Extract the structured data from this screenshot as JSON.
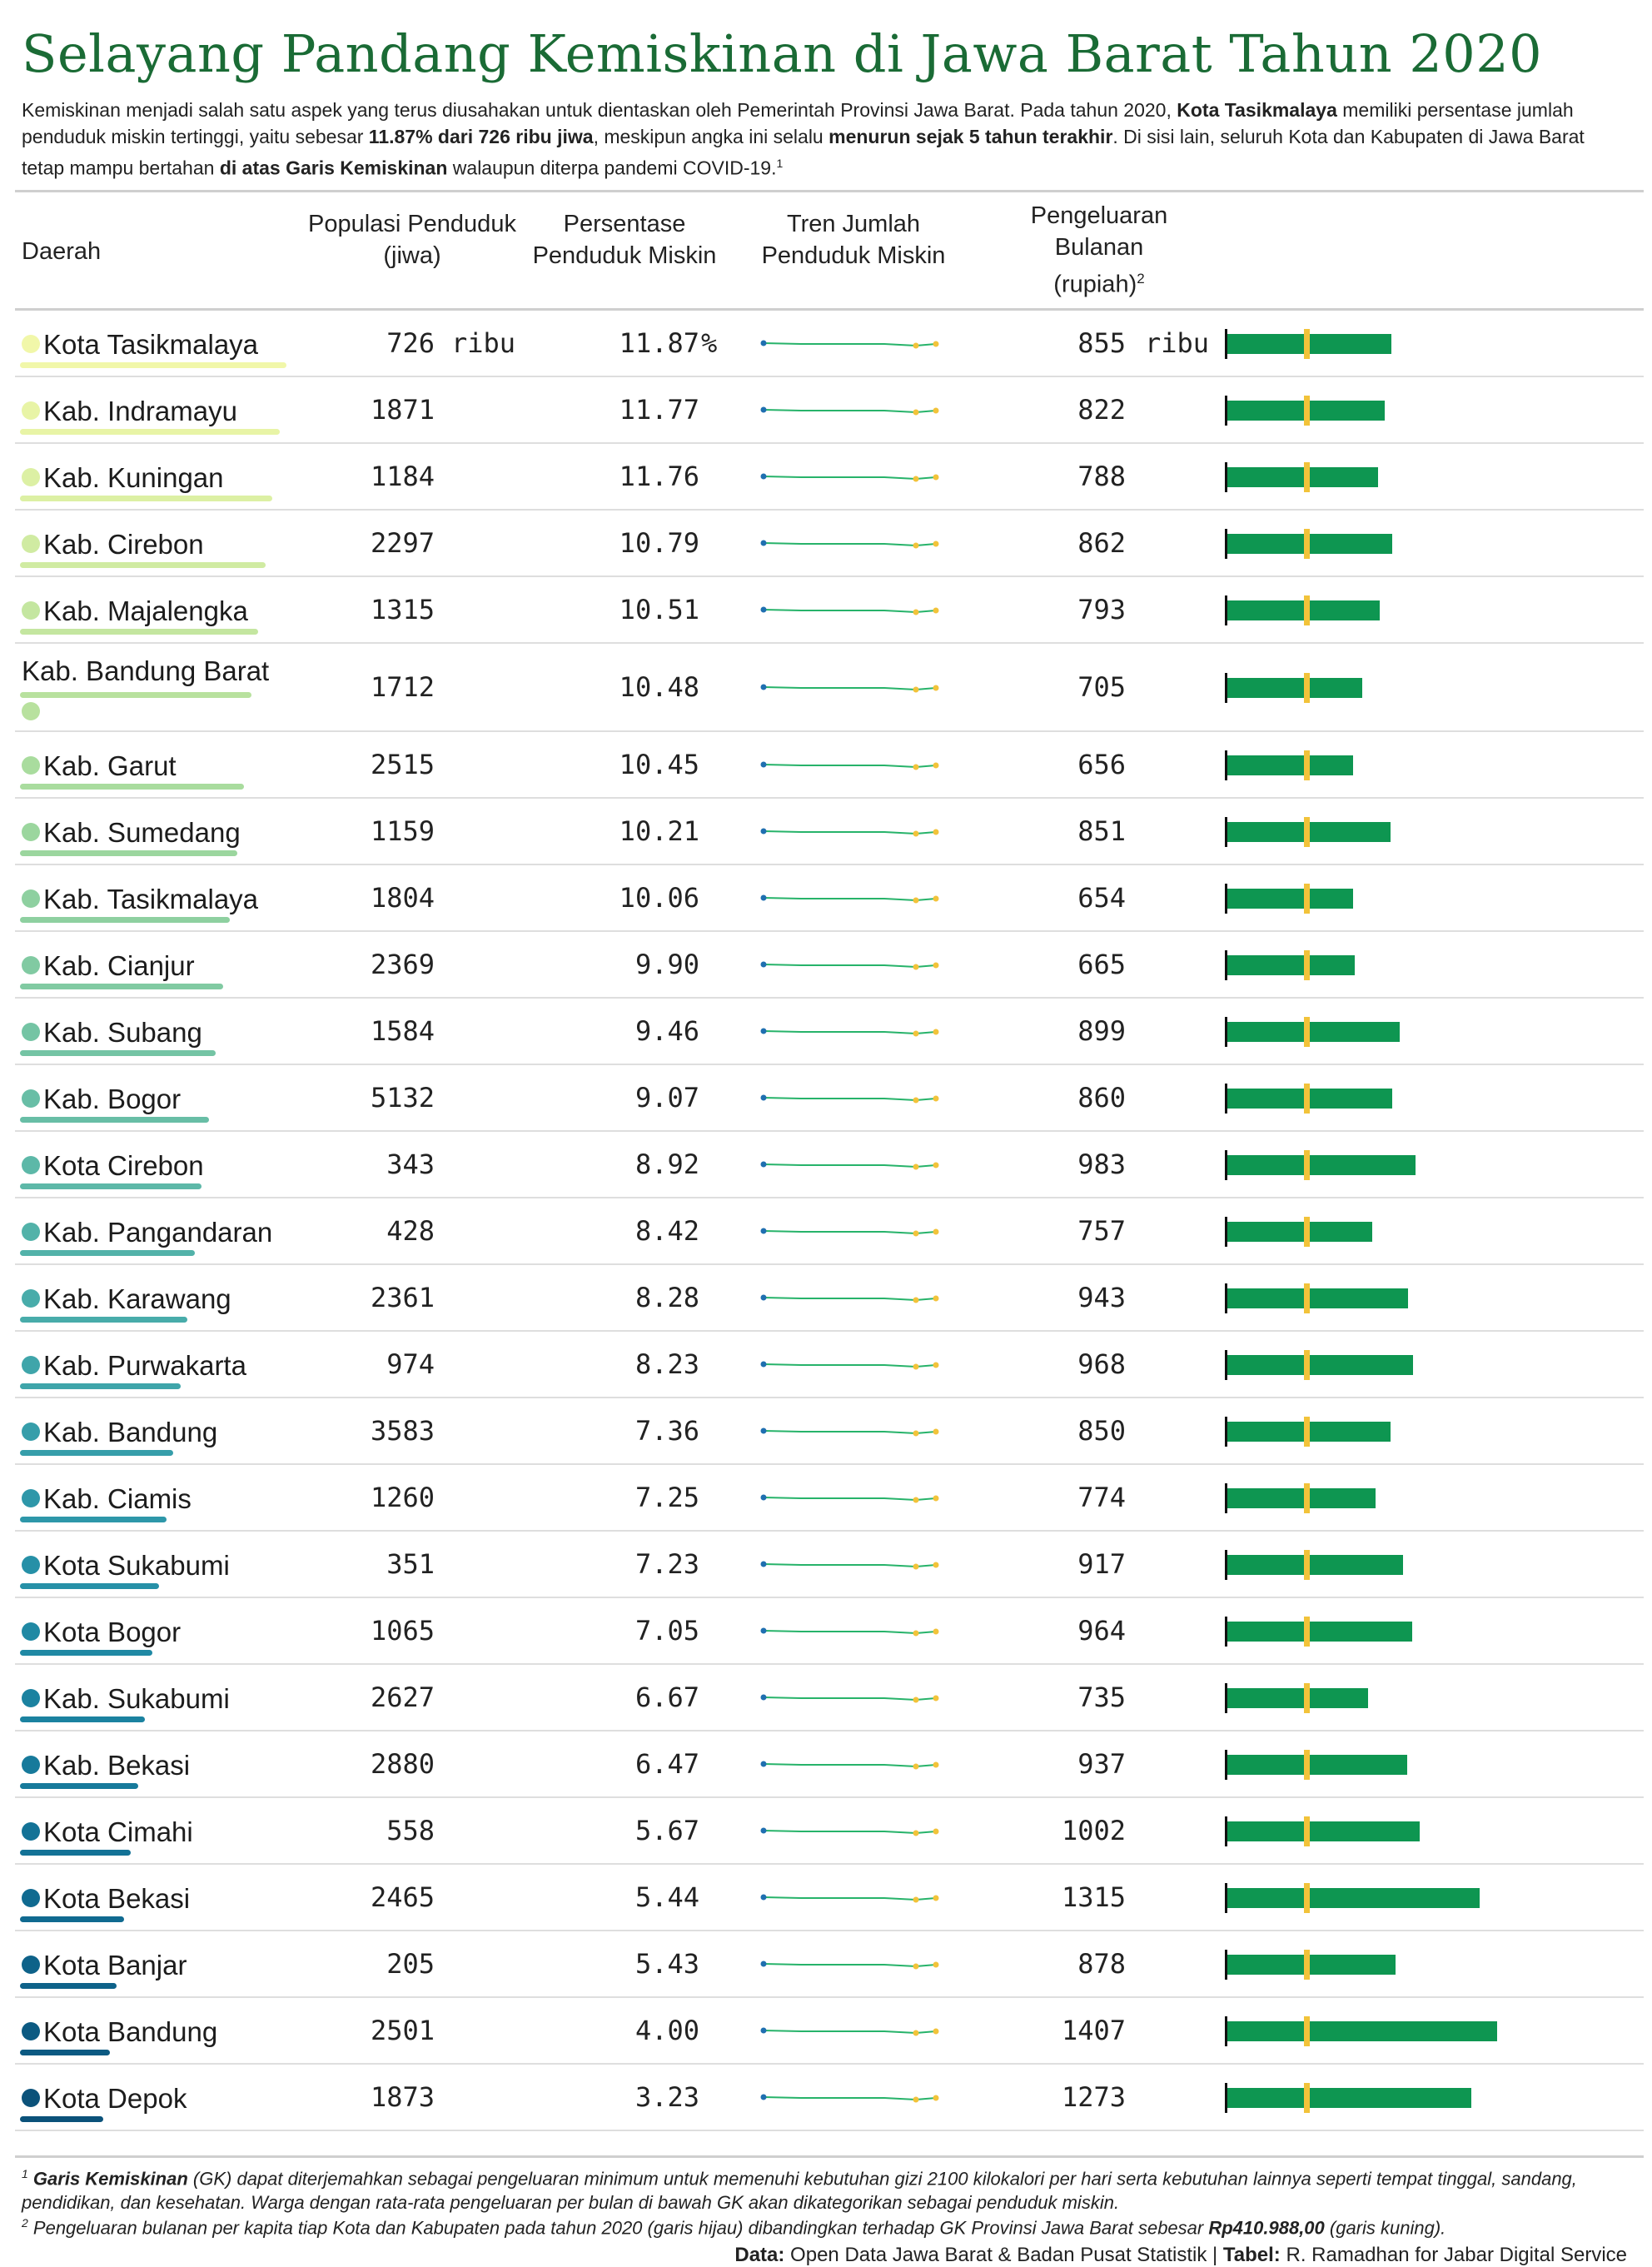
{
  "title": "Selayang Pandang Kemiskinan di Jawa Barat Tahun 2020",
  "intro": [
    {
      "t": "Kemiskinan menjadi salah satu aspek yang terus diusahakan untuk dientaskan oleh Pemerintah Provinsi Jawa Barat. Pada tahun 2020, "
    },
    {
      "t": "Kota Tasikmalaya",
      "b": true
    },
    {
      "t": " memiliki persentase jumlah penduduk miskin tertinggi, yaitu sebesar "
    },
    {
      "t": "11.87% dari 726 ribu jiwa",
      "b": true
    },
    {
      "t": ", meskipun angka ini selalu "
    },
    {
      "t": "menurun sejak 5 tahun terakhir",
      "b": true
    },
    {
      "t": ". Di sisi lain, seluruh Kota dan Kabupaten di Jawa Barat tetap mampu bertahan "
    },
    {
      "t": "di atas Garis Kemiskinan",
      "b": true
    },
    {
      "t": " walaupun diterpa pandemi COVID-19."
    },
    {
      "t": "1",
      "sup": true
    }
  ],
  "headers": {
    "region": "Daerah",
    "population": "Populasi Penduduk (jiwa)",
    "percent": "Persentase Penduduk Miskin",
    "trend": "Tren Jumlah Penduduk Miskin",
    "spending": "Pengeluaran Bulanan (rupiah)",
    "spending_sup": "2"
  },
  "units": {
    "thousand": "ribu",
    "percent": "%"
  },
  "colors": {
    "bar": "#0e9651",
    "gk_line": "#f2c33a",
    "trend_line": "#27b36a",
    "trend_dot": "#1f6fb0",
    "trend_dot_alt": "#f2c33a"
  },
  "gk_reference": {
    "label": "GK Provinsi Jawa Barat",
    "value": "Rp410.988,00"
  },
  "rows": [
    {
      "name": "Kota Tasikmalaya",
      "pop": "726",
      "pct": "11.87",
      "spend": "855",
      "spend_value": 855,
      "color": "#f1f7a9"
    },
    {
      "name": "Kab. Indramayu",
      "pop": "1871",
      "pct": "11.77",
      "spend": "822",
      "spend_value": 822,
      "color": "#e8f4a6"
    },
    {
      "name": "Kab. Kuningan",
      "pop": "1184",
      "pct": "11.76",
      "spend": "788",
      "spend_value": 788,
      "color": "#dcf0a4"
    },
    {
      "name": "Kab. Cirebon",
      "pop": "2297",
      "pct": "10.79",
      "spend": "862",
      "spend_value": 862,
      "color": "#d0eba2"
    },
    {
      "name": "Kab. Majalengka",
      "pop": "1315",
      "pct": "10.51",
      "spend": "793",
      "spend_value": 793,
      "color": "#c4e6a0"
    },
    {
      "name": "Kab. Bandung Barat",
      "pop": "1712",
      "pct": "10.48",
      "spend": "705",
      "spend_value": 705,
      "color": "#b8e19e"
    },
    {
      "name": "Kab. Garut",
      "pop": "2515",
      "pct": "10.45",
      "spend": "656",
      "spend_value": 656,
      "color": "#a9dc9e"
    },
    {
      "name": "Kab. Sumedang",
      "pop": "1159",
      "pct": "10.21",
      "spend": "851",
      "spend_value": 851,
      "color": "#9bd69e"
    },
    {
      "name": "Kab. Tasikmalaya",
      "pop": "1804",
      "pct": "10.06",
      "spend": "654",
      "spend_value": 654,
      "color": "#8ed0a0"
    },
    {
      "name": "Kab. Cianjur",
      "pop": "2369",
      "pct": "9.90",
      "spend": "665",
      "spend_value": 665,
      "color": "#81caa2"
    },
    {
      "name": "Kab. Subang",
      "pop": "1584",
      "pct": "9.46",
      "spend": "899",
      "spend_value": 899,
      "color": "#74c4a4"
    },
    {
      "name": "Kab. Bogor",
      "pop": "5132",
      "pct": "9.07",
      "spend": "860",
      "spend_value": 860,
      "color": "#68bea6"
    },
    {
      "name": "Kota Cirebon",
      "pop": "343",
      "pct": "8.92",
      "spend": "983",
      "spend_value": 983,
      "color": "#5db8a8"
    },
    {
      "name": "Kab. Pangandaran",
      "pop": "428",
      "pct": "8.42",
      "spend": "757",
      "spend_value": 757,
      "color": "#52b2a9"
    },
    {
      "name": "Kab. Karawang",
      "pop": "2361",
      "pct": "8.28",
      "spend": "943",
      "spend_value": 943,
      "color": "#48acaa"
    },
    {
      "name": "Kab. Purwakarta",
      "pop": "974",
      "pct": "8.23",
      "spend": "968",
      "spend_value": 968,
      "color": "#3fa5aa"
    },
    {
      "name": "Kab. Bandung",
      "pop": "3583",
      "pct": "7.36",
      "spend": "850",
      "spend_value": 850,
      "color": "#369eaa"
    },
    {
      "name": "Kab. Ciamis",
      "pop": "1260",
      "pct": "7.25",
      "spend": "774",
      "spend_value": 774,
      "color": "#2e97a9"
    },
    {
      "name": "Kota Sukabumi",
      "pop": "351",
      "pct": "7.23",
      "spend": "917",
      "spend_value": 917,
      "color": "#2690a7"
    },
    {
      "name": "Kota Bogor",
      "pop": "1065",
      "pct": "7.05",
      "spend": "964",
      "spend_value": 964,
      "color": "#2089a4"
    },
    {
      "name": "Kab. Sukabumi",
      "pop": "2627",
      "pct": "6.67",
      "spend": "735",
      "spend_value": 735,
      "color": "#1b82a0"
    },
    {
      "name": "Kab. Bekasi",
      "pop": "2880",
      "pct": "6.47",
      "spend": "937",
      "spend_value": 937,
      "color": "#177a9b"
    },
    {
      "name": "Kota Cimahi",
      "pop": "558",
      "pct": "5.67",
      "spend": "1002",
      "spend_value": 1002,
      "color": "#137296"
    },
    {
      "name": "Kota Bekasi",
      "pop": "2465",
      "pct": "5.44",
      "spend": "1315",
      "spend_value": 1315,
      "color": "#106a90"
    },
    {
      "name": "Kota Banjar",
      "pop": "205",
      "pct": "5.43",
      "spend": "878",
      "spend_value": 878,
      "color": "#0e6289"
    },
    {
      "name": "Kota Bandung",
      "pop": "2501",
      "pct": "4.00",
      "spend": "1407",
      "spend_value": 1407,
      "color": "#0c5a82"
    },
    {
      "name": "Kota Depok",
      "pop": "1873",
      "pct": "3.23",
      "spend": "1273",
      "spend_value": 1273,
      "color": "#0b527a"
    }
  ],
  "footnotes": [
    [
      {
        "t": "1",
        "sup": true
      },
      {
        "t": " "
      },
      {
        "t": "Garis Kemiskinan",
        "b": true
      },
      {
        "t": " (GK) dapat diterjemahkan sebagai pengeluaran minimum untuk memenuhi kebutuhan gizi 2100 kilokalori per hari serta kebutuhan lainnya seperti tempat tinggal, sandang, pendidikan, dan kesehatan. Warga dengan rata-rata pengeluaran per bulan di bawah GK akan dikategorikan sebagai penduduk miskin."
      }
    ],
    [
      {
        "t": "2",
        "sup": true
      },
      {
        "t": " Pengeluaran bulanan per kapita tiap Kota dan Kabupaten pada tahun 2020 (garis hijau) dibandingkan terhadap GK Provinsi Jawa Barat sebesar "
      },
      {
        "t": "Rp410.988,00",
        "b": true
      },
      {
        "t": " (garis kuning)."
      }
    ]
  ],
  "source": {
    "data_label": "Data:",
    "data_text": " Open Data Jawa Barat & Badan Pusat Statistik | ",
    "table_label": "Tabel:",
    "table_text": " R. Ramadhan for Jabar Digital Service"
  }
}
